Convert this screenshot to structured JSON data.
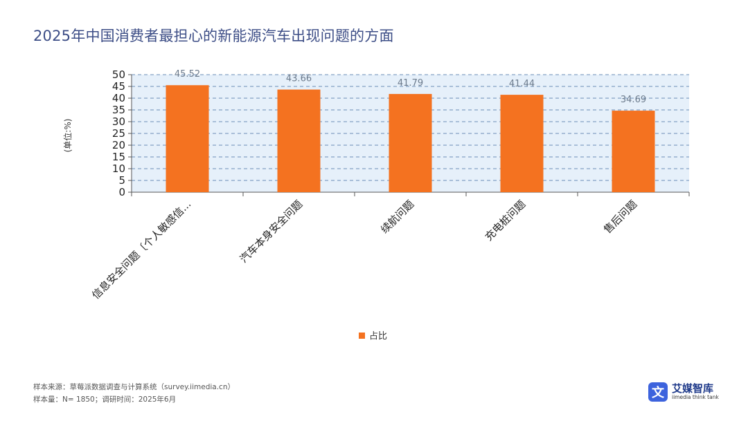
{
  "page": {
    "title": "2025年中国消费者最担心的新能源汽车出现问题的方面"
  },
  "chart_data": {
    "type": "bar",
    "categories": [
      "信息安全问题〔个人敏感信...",
      "汽车本身安全问题",
      "续航问题",
      "充电桩问题",
      "售后问题"
    ],
    "series": [
      {
        "name": "占比",
        "values": [
          45.52,
          43.66,
          41.79,
          41.44,
          34.69
        ]
      }
    ],
    "ylabel": "(单位:%)",
    "ylim": [
      0,
      50
    ],
    "yticks": [
      0,
      5,
      10,
      15,
      20,
      25,
      30,
      35,
      40,
      45,
      50
    ],
    "grid": true,
    "legend": "bottom-center",
    "bar_color": "#f47220",
    "plot_background": "#e6f0fa",
    "grid_color": "#6a8bb5"
  },
  "footer": {
    "source": "样本来源：草莓派数据调查与计算系统（survey.iimedia.cn）",
    "sample": "样本量：N= 1850；调研时间：2025年6月"
  },
  "brand": {
    "mark": "文",
    "name": "艾媒智库",
    "sub": "iimedia think tank",
    "color": "#3d63dd"
  }
}
